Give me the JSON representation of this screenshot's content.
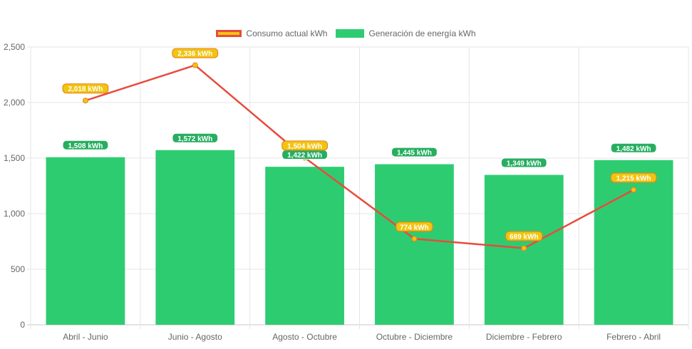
{
  "chart_data": {
    "type": "bar",
    "categories": [
      "Abril - Junio",
      "Junio - Agosto",
      "Agosto - Octubre",
      "Octubre - Diciembre",
      "Diciembre - Febrero",
      "Febrero - Abril"
    ],
    "series": [
      {
        "name": "Consumo actual kWh",
        "type": "line",
        "values": [
          2018,
          2336,
          1504,
          774,
          689,
          1215
        ],
        "labels": [
          "2,018 kWh",
          "2,336 kWh",
          "1,504 kWh",
          "774 kWh",
          "689 kWh",
          "1,215 kWh"
        ],
        "color": "#e74c3c",
        "point_color": "#f1c40f"
      },
      {
        "name": "Generación de energía kWh",
        "type": "bar",
        "values": [
          1508,
          1572,
          1422,
          1445,
          1349,
          1482
        ],
        "labels": [
          "1,508 kWh",
          "1,572 kWh",
          "1,422 kWh",
          "1,445 kWh",
          "1,349 kWh",
          "1,482 kWh"
        ],
        "color": "#2ecc71"
      }
    ],
    "ylim": [
      0,
      2500
    ],
    "yticks": [
      "0",
      "500",
      "1,000",
      "1,500",
      "2,000",
      "2,500"
    ],
    "ytick_values": [
      0,
      500,
      1000,
      1500,
      2000,
      2500
    ],
    "grid": true,
    "legend_position": "top-center"
  }
}
